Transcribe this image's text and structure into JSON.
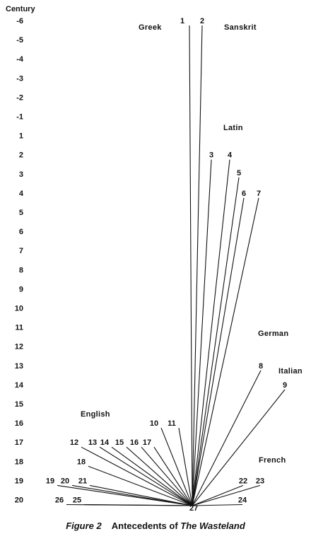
{
  "axis": {
    "title": "Century",
    "ticks": [
      "-6",
      "-5",
      "-4",
      "-3",
      "-2",
      "-1",
      "1",
      "2",
      "3",
      "4",
      "5",
      "6",
      "7",
      "8",
      "9",
      "10",
      "11",
      "12",
      "13",
      "14",
      "15",
      "16",
      "17",
      "18",
      "19",
      "20"
    ]
  },
  "languages": {
    "greek": "Greek",
    "sanskrit": "Sanskrit",
    "latin": "Latin",
    "german": "German",
    "italian": "Italian",
    "english": "English",
    "french": "French"
  },
  "target": "27",
  "sources": [
    {
      "id": "1",
      "century": "-6"
    },
    {
      "id": "2",
      "century": "-6"
    },
    {
      "id": "3",
      "century": "2"
    },
    {
      "id": "4",
      "century": "2"
    },
    {
      "id": "5",
      "century": "3"
    },
    {
      "id": "6",
      "century": "4"
    },
    {
      "id": "7",
      "century": "4"
    },
    {
      "id": "8",
      "century": "13"
    },
    {
      "id": "9",
      "century": "14"
    },
    {
      "id": "10",
      "century": "16"
    },
    {
      "id": "11",
      "century": "16"
    },
    {
      "id": "12",
      "century": "17"
    },
    {
      "id": "13",
      "century": "17"
    },
    {
      "id": "14",
      "century": "17"
    },
    {
      "id": "15",
      "century": "17"
    },
    {
      "id": "16",
      "century": "17"
    },
    {
      "id": "17",
      "century": "17"
    },
    {
      "id": "18",
      "century": "18"
    },
    {
      "id": "19",
      "century": "19"
    },
    {
      "id": "20",
      "century": "19"
    },
    {
      "id": "21",
      "century": "19"
    },
    {
      "id": "22",
      "century": "19"
    },
    {
      "id": "23",
      "century": "19"
    },
    {
      "id": "24",
      "century": "20"
    },
    {
      "id": "25",
      "century": "20"
    },
    {
      "id": "26",
      "century": "20"
    }
  ],
  "caption": {
    "label": "Figure 2",
    "title_plain": "Antecedents of ",
    "title_italic": "The Wasteland"
  }
}
